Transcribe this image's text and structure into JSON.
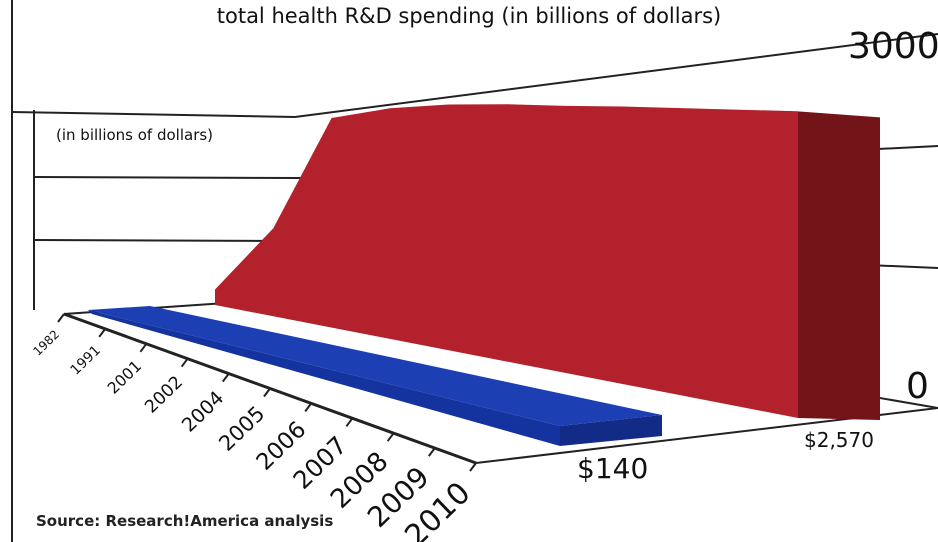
{
  "chart_data": {
    "type": "area",
    "title": "total health R&D spending (in billions of dollars)",
    "units_label": "(in billions of dollars)",
    "categories": [
      "1982",
      "1991",
      "2001",
      "2002",
      "2004",
      "2005",
      "2006",
      "2007",
      "2008",
      "2009",
      "2010"
    ],
    "ylim": [
      0,
      3000
    ],
    "y_tick_labels": [
      "3000",
      "0"
    ],
    "series": [
      {
        "values": [
          190,
          1030,
          2350,
          2480,
          2540,
          2560,
          2560,
          2570,
          2570,
          2570,
          2570
        ],
        "color": "#b3212c",
        "data_label": "$2,570"
      },
      {
        "values": [
          110,
          115,
          120,
          125,
          128,
          130,
          132,
          135,
          137,
          138,
          140
        ],
        "color": "#1c3fb3",
        "data_label": "$140"
      }
    ],
    "source": "Source: Research!America analysis",
    "grid": true
  }
}
